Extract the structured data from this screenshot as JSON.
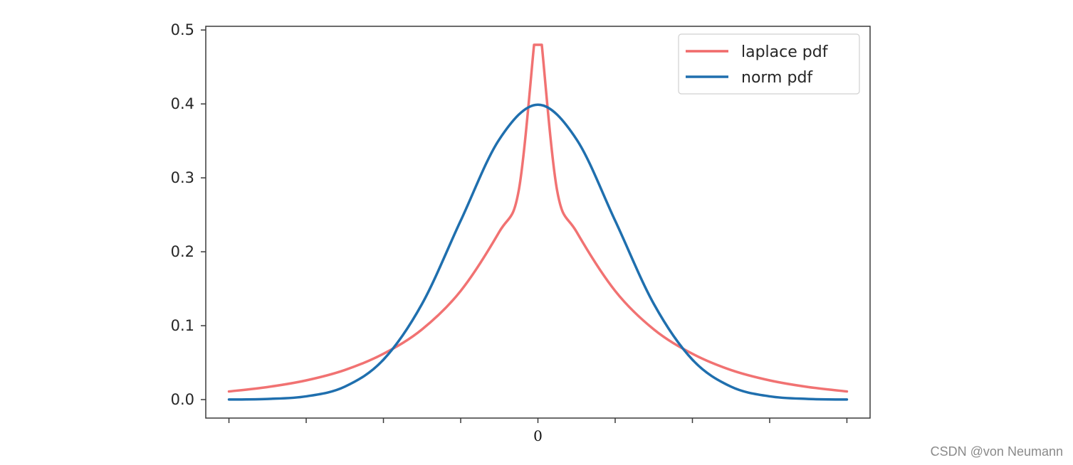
{
  "chart_data": {
    "type": "line",
    "title": "",
    "xlabel": "",
    "ylabel": "",
    "xlim": [
      -4.3,
      4.3
    ],
    "ylim": [
      -0.025,
      0.505
    ],
    "x_ticks": [
      -4,
      -3,
      -2,
      -1,
      0,
      1,
      2,
      3,
      4
    ],
    "x_tick_labels": [
      "",
      "",
      "",
      "",
      "0",
      "",
      "",
      "",
      ""
    ],
    "y_ticks": [
      0.0,
      0.1,
      0.2,
      0.3,
      0.4,
      0.5
    ],
    "y_tick_labels": [
      "0.0",
      "0.1",
      "0.2",
      "0.3",
      "0.4",
      "0.5"
    ],
    "grid": false,
    "legend_position": "top-right",
    "series": [
      {
        "name": "laplace pdf",
        "color": "#f06a6a",
        "x": [
          -4,
          -3.5,
          -3,
          -2.5,
          -2,
          -1.5,
          -1,
          -0.5,
          -0.25,
          -0.05,
          0,
          0.05,
          0.25,
          0.5,
          1,
          1.5,
          2,
          2.5,
          3,
          3.5,
          4
        ],
        "y": [
          0.011,
          0.017,
          0.026,
          0.04,
          0.062,
          0.095,
          0.147,
          0.227,
          0.282,
          0.48,
          0.48,
          0.48,
          0.282,
          0.227,
          0.147,
          0.095,
          0.062,
          0.04,
          0.026,
          0.017,
          0.011
        ]
      },
      {
        "name": "norm pdf",
        "color": "#1f6fae",
        "x": [
          -4,
          -3.5,
          -3,
          -2.5,
          -2,
          -1.5,
          -1,
          -0.5,
          0,
          0.5,
          1,
          1.5,
          2,
          2.5,
          3,
          3.5,
          4
        ],
        "y": [
          0.0001,
          0.0009,
          0.0044,
          0.0175,
          0.054,
          0.1295,
          0.242,
          0.352,
          0.399,
          0.352,
          0.242,
          0.1295,
          0.054,
          0.0175,
          0.0044,
          0.0009,
          0.0001
        ]
      }
    ]
  },
  "watermark": "CSDN @von  Neumann"
}
